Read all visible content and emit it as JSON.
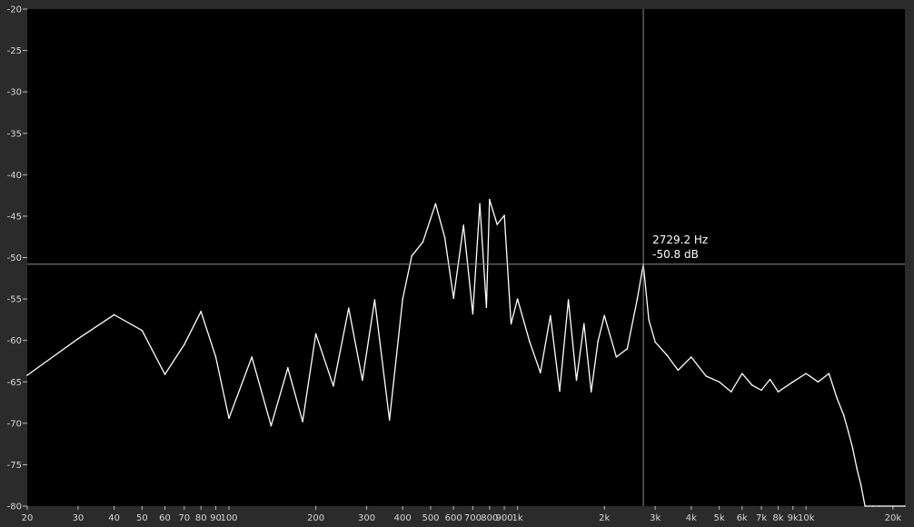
{
  "chart_data": {
    "type": "line",
    "title": "",
    "xlabel": "",
    "ylabel": "",
    "x_scale": "log",
    "xlim": [
      20,
      22000
    ],
    "ylim": [
      -80,
      -20
    ],
    "grid": false,
    "legend": "none",
    "colors": {
      "background": "#000000",
      "frame": "#2b2b2b",
      "line": "#ffffff",
      "cursor": "#8a8a8a",
      "text": "#d6d6d6"
    },
    "x_ticks": [
      {
        "value": 20,
        "label": "20"
      },
      {
        "value": 30,
        "label": "30"
      },
      {
        "value": 40,
        "label": "40"
      },
      {
        "value": 50,
        "label": "50"
      },
      {
        "value": 60,
        "label": "60"
      },
      {
        "value": 70,
        "label": "70"
      },
      {
        "value": 80,
        "label": "80"
      },
      {
        "value": 90,
        "label": "90"
      },
      {
        "value": 100,
        "label": "100"
      },
      {
        "value": 200,
        "label": "200"
      },
      {
        "value": 300,
        "label": "300"
      },
      {
        "value": 400,
        "label": "400"
      },
      {
        "value": 500,
        "label": "500"
      },
      {
        "value": 600,
        "label": "600"
      },
      {
        "value": 700,
        "label": "700"
      },
      {
        "value": 800,
        "label": "800"
      },
      {
        "value": 900,
        "label": "900"
      },
      {
        "value": 1000,
        "label": "1k"
      },
      {
        "value": 2000,
        "label": "2k"
      },
      {
        "value": 3000,
        "label": "3k"
      },
      {
        "value": 4000,
        "label": "4k"
      },
      {
        "value": 5000,
        "label": "5k"
      },
      {
        "value": 6000,
        "label": "6k"
      },
      {
        "value": 7000,
        "label": "7k"
      },
      {
        "value": 8000,
        "label": "8k"
      },
      {
        "value": 9000,
        "label": "9k"
      },
      {
        "value": 10000,
        "label": "10k"
      },
      {
        "value": 20000,
        "label": "20k"
      }
    ],
    "y_ticks": [
      {
        "value": -20,
        "label": "-20"
      },
      {
        "value": -25,
        "label": "-25"
      },
      {
        "value": -30,
        "label": "-30"
      },
      {
        "value": -35,
        "label": "-35"
      },
      {
        "value": -40,
        "label": "-40"
      },
      {
        "value": -45,
        "label": "-45"
      },
      {
        "value": -50,
        "label": "-50"
      },
      {
        "value": -55,
        "label": "-55"
      },
      {
        "value": -60,
        "label": "-60"
      },
      {
        "value": -65,
        "label": "-65"
      },
      {
        "value": -70,
        "label": "-70"
      },
      {
        "value": -75,
        "label": "-75"
      },
      {
        "value": -80,
        "label": "-80"
      }
    ],
    "cursor": {
      "x": 2729.2,
      "y": -50.8,
      "label_freq": "2729.2 Hz",
      "label_db": "-50.8 dB"
    },
    "series": [
      {
        "x": [
          20,
          30,
          40,
          50,
          60,
          70,
          80,
          90,
          100,
          120,
          140,
          160,
          180,
          200,
          230,
          260,
          290,
          320,
          360,
          400,
          430,
          470,
          520,
          560,
          600,
          650,
          700,
          740,
          780,
          800,
          850,
          900,
          950,
          1000,
          1100,
          1200,
          1300,
          1400,
          1500,
          1600,
          1700,
          1800,
          1900,
          2000,
          2200,
          2400,
          2600,
          2729.2,
          2850,
          3000,
          3300,
          3600,
          4000,
          4500,
          5000,
          5500,
          6000,
          6500,
          7000,
          7500,
          8000,
          9000,
          10000,
          11000,
          12000,
          12800,
          13500,
          14000,
          14500,
          15000,
          15500,
          16000,
          17000,
          18000,
          20000,
          22000
        ],
        "y": [
          -64.2,
          -59.8,
          -56.9,
          -58.8,
          -64.1,
          -60.5,
          -56.5,
          -62.0,
          -69.4,
          -62.0,
          -70.3,
          -63.3,
          -69.8,
          -59.2,
          -65.5,
          -56.1,
          -64.8,
          -55.1,
          -69.6,
          -55.0,
          -49.8,
          -48.1,
          -43.5,
          -47.6,
          -54.9,
          -46.1,
          -56.8,
          -43.5,
          -56.0,
          -43.0,
          -46.0,
          -44.9,
          -58.0,
          -55.0,
          -60.1,
          -63.9,
          -57.0,
          -66.1,
          -55.1,
          -64.8,
          -58.0,
          -66.2,
          -60.1,
          -57.0,
          -62.0,
          -61.0,
          -55.0,
          -50.8,
          -57.5,
          -60.2,
          -61.8,
          -63.6,
          -62.0,
          -64.3,
          -65.0,
          -66.2,
          -64.0,
          -65.4,
          -66.0,
          -64.7,
          -66.2,
          -65.0,
          -64.0,
          -65.0,
          -64.0,
          -67.0,
          -69.0,
          -71.0,
          -73.0,
          -75.5,
          -77.5,
          -80.0,
          -80.0,
          -80.0,
          -80.0,
          -80.0
        ]
      }
    ]
  }
}
